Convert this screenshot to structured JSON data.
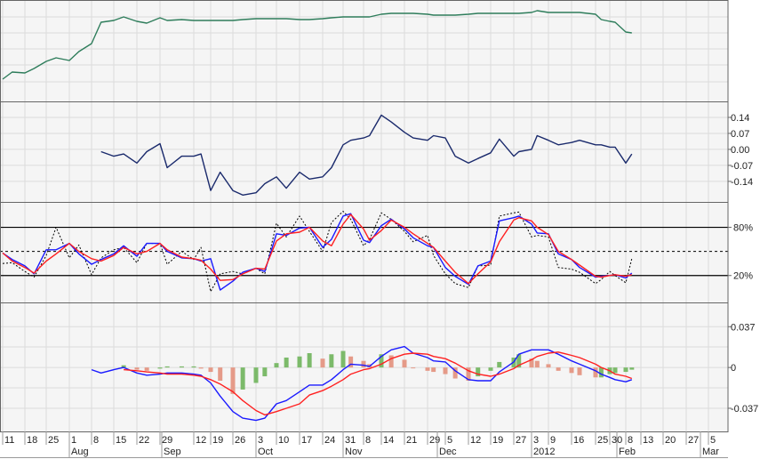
{
  "chart_data": [
    {
      "type": "line",
      "panel": "price",
      "grid": true,
      "ylim": [
        0,
        114
      ],
      "series": [
        {
          "color": "#2e7d5b",
          "values": [
            25,
            33,
            32,
            37,
            45,
            49,
            46,
            56,
            65,
            89,
            91,
            95,
            90,
            88,
            94,
            91,
            92,
            91,
            91,
            91,
            91,
            91,
            92,
            93,
            93,
            93,
            93,
            92,
            92,
            93,
            94,
            95,
            95,
            95,
            95,
            98,
            99,
            99,
            99,
            98,
            97,
            97,
            97,
            98,
            99,
            99,
            99,
            99,
            99,
            100,
            102,
            100,
            100,
            100,
            100,
            98,
            92,
            90,
            89,
            78,
            77
          ]
        }
      ]
    },
    {
      "type": "line",
      "panel": "momentum",
      "grid": true,
      "ylim": [
        -0.23,
        0.21
      ],
      "yticks": [
        0.14,
        0.07,
        0.0,
        -0.07,
        -0.14
      ],
      "ytick_labels": [
        "0.14",
        "0.07",
        "0.00",
        "-0.07",
        "-0.14"
      ],
      "series": [
        {
          "color": "#1a2a6c",
          "values": [
            null,
            null,
            null,
            null,
            null,
            null,
            null,
            null,
            null,
            -0.01,
            -0.03,
            -0.02,
            -0.06,
            -0.01,
            0.025,
            -0.08,
            -0.03,
            -0.03,
            -0.02,
            -0.18,
            -0.1,
            -0.18,
            -0.2,
            -0.19,
            -0.15,
            -0.12,
            -0.17,
            -0.1,
            -0.13,
            -0.12,
            -0.08,
            0.02,
            0.04,
            0.05,
            0.06,
            0.15,
            0.12,
            0.075,
            0.05,
            0.04,
            0.06,
            0.05,
            -0.03,
            -0.06,
            -0.04,
            -0.015,
            0.045,
            -0.03,
            -0.01,
            0.0,
            0.06,
            0.04,
            0.02,
            0.03,
            0.04,
            0.02,
            0.02,
            0.01,
            0.01,
            -0.06,
            -0.02
          ]
        }
      ]
    },
    {
      "type": "line",
      "panel": "stochastic",
      "grid": true,
      "ylim": [
        -13.5,
        111.6
      ],
      "yticks": [
        80,
        20
      ],
      "ytick_labels": [
        "80%",
        "20%"
      ],
      "midline": 50,
      "series": [
        {
          "color": "#000000",
          "style": "dotted",
          "values": [
            35,
            36,
            25,
            18,
            45,
            80,
            42,
            58,
            21,
            42,
            52,
            55,
            36,
            60,
            60,
            34,
            50,
            40,
            55,
            0,
            22,
            25,
            22,
            29,
            22,
            85,
            68,
            94,
            75,
            50,
            86,
            100,
            90,
            57,
            65,
            98,
            90,
            75,
            62,
            70,
            45,
            22,
            10,
            5,
            32,
            33,
            94,
            98,
            99,
            68,
            70,
            68,
            30,
            28,
            24,
            10,
            15,
            25,
            20,
            11,
            41
          ]
        },
        {
          "color": "#1a1aff",
          "values": [
            48,
            40,
            32,
            22,
            52,
            52,
            60,
            47,
            34,
            40,
            47,
            57,
            44,
            60,
            60,
            50,
            42,
            41,
            38,
            41,
            2,
            13,
            24,
            29,
            25,
            72,
            70,
            79,
            80,
            55,
            65,
            94,
            97,
            64,
            61,
            82,
            90,
            78,
            67,
            57,
            55,
            30,
            19,
            9,
            32,
            38,
            88,
            92,
            94,
            84,
            73,
            72,
            47,
            40,
            30,
            18,
            19,
            20,
            21,
            17,
            23
          ]
        },
        {
          "color": "#ff2020",
          "values": [
            48,
            38,
            30,
            23,
            38,
            47,
            60,
            50,
            41,
            38,
            45,
            55,
            47,
            50,
            60,
            52,
            43,
            41,
            39,
            28,
            14,
            15,
            22,
            29,
            28,
            63,
            72,
            74,
            80,
            63,
            57,
            84,
            96,
            78,
            64,
            76,
            89,
            80,
            72,
            60,
            55,
            38,
            24,
            10,
            22,
            37,
            62,
            89,
            92,
            88,
            80,
            71,
            50,
            40,
            33,
            19,
            18,
            20,
            21,
            19,
            21
          ]
        }
      ]
    },
    {
      "type": "line",
      "panel": "macd",
      "grid": true,
      "ylim": [
        -0.058,
        0.059
      ],
      "yticks": [
        0.037,
        0,
        -0.037
      ],
      "ytick_labels": [
        "0.037",
        "0",
        "-0.037"
      ],
      "histogram": {
        "up_color": "#7cba6a",
        "down_color": "#e59a88",
        "values": [
          null,
          null,
          null,
          null,
          null,
          null,
          null,
          null,
          null,
          null,
          null,
          0.002,
          -0.002,
          -0.003,
          -0.001,
          0.001,
          0.001,
          0.001,
          -0.001,
          -0.004,
          -0.012,
          -0.024,
          -0.02,
          -0.014,
          -0.008,
          0.004,
          0.009,
          0.01,
          0.013,
          0.008,
          0.012,
          0.015,
          0.01,
          0.006,
          0.003,
          0.012,
          0.011,
          0.007,
          0.0,
          -0.003,
          -0.004,
          -0.006,
          -0.01,
          -0.012,
          -0.008,
          -0.003,
          0.005,
          0.009,
          0.012,
          0.008,
          0.006,
          0.003,
          -0.003,
          -0.005,
          -0.007,
          -0.009,
          -0.009,
          -0.006,
          -0.005,
          -0.004,
          -0.002
        ]
      },
      "series": [
        {
          "color": "#1a1aff",
          "values": [
            null,
            null,
            null,
            null,
            null,
            null,
            null,
            null,
            -0.002,
            -0.005,
            -0.002,
            0.0,
            -0.005,
            -0.007,
            -0.006,
            -0.005,
            -0.005,
            -0.006,
            -0.007,
            -0.014,
            -0.026,
            -0.04,
            -0.046,
            -0.048,
            -0.046,
            -0.033,
            -0.03,
            -0.022,
            -0.016,
            -0.016,
            -0.011,
            -0.002,
            0.003,
            0.002,
            0.001,
            0.01,
            0.016,
            0.019,
            0.013,
            0.009,
            0.006,
            0.005,
            -0.003,
            -0.011,
            -0.012,
            -0.012,
            -0.004,
            0.005,
            0.012,
            0.016,
            0.016,
            0.016,
            0.012,
            0.006,
            0.003,
            -0.003,
            -0.006,
            -0.009,
            -0.011,
            -0.013,
            -0.011
          ]
        },
        {
          "color": "#ff2020",
          "values": [
            null,
            null,
            null,
            null,
            null,
            null,
            null,
            null,
            null,
            null,
            null,
            -0.002,
            -0.003,
            -0.004,
            -0.005,
            -0.006,
            -0.006,
            -0.007,
            -0.008,
            -0.011,
            -0.015,
            -0.022,
            -0.03,
            -0.039,
            -0.043,
            -0.04,
            -0.037,
            -0.033,
            -0.025,
            -0.021,
            -0.017,
            -0.011,
            -0.006,
            -0.002,
            -0.001,
            0.003,
            0.008,
            0.012,
            0.013,
            0.012,
            0.01,
            0.008,
            0.004,
            -0.003,
            -0.006,
            -0.008,
            -0.006,
            -0.001,
            0.002,
            0.007,
            0.01,
            0.013,
            0.014,
            0.011,
            0.009,
            0.003,
            0.0,
            -0.003,
            -0.006,
            -0.008,
            -0.01
          ]
        }
      ]
    }
  ],
  "dates": [
    "2011-07-11",
    "2011-07-14",
    "2011-07-18",
    "2011-07-21",
    "2011-07-25",
    "2011-07-28",
    "2011-08-01",
    "2011-08-04",
    "2011-08-08",
    "2011-08-11",
    "2011-08-15",
    "2011-08-18",
    "2011-08-22",
    "2011-08-25",
    "2011-08-29",
    "2011-09-01",
    "2011-09-07",
    "2011-09-12",
    "2011-09-15",
    "2011-09-19",
    "2011-09-22",
    "2011-09-26",
    "2011-09-29",
    "2011-10-03",
    "2011-10-06",
    "2011-10-10",
    "2011-10-13",
    "2011-10-17",
    "2011-10-20",
    "2011-10-24",
    "2011-10-27",
    "2011-10-31",
    "2011-11-03",
    "2011-11-08",
    "2011-11-10",
    "2011-11-14",
    "2011-11-17",
    "2011-11-21",
    "2011-11-24",
    "2011-11-29",
    "2011-12-01",
    "2011-12-05",
    "2011-12-08",
    "2011-12-12",
    "2011-12-15",
    "2011-12-19",
    "2011-12-22",
    "2011-12-27",
    "2011-12-29",
    "2012-01-03",
    "2012-01-05",
    "2012-01-09",
    "2012-01-12",
    "2012-01-16",
    "2012-01-19",
    "2012-01-25",
    "2012-01-27",
    "2012-01-30",
    "2012-02-02",
    "2012-02-08",
    "2012-02-10"
  ],
  "x_axis": {
    "ticks": [
      {
        "label": "11",
        "date": "2011-07-11"
      },
      {
        "label": "18",
        "date": "2011-07-18"
      },
      {
        "label": "25",
        "date": "2011-07-25"
      },
      {
        "label": "1",
        "date": "2011-08-01"
      },
      {
        "label": "8",
        "date": "2011-08-08"
      },
      {
        "label": "15",
        "date": "2011-08-15"
      },
      {
        "label": "22",
        "date": "2011-08-22"
      },
      {
        "label": "29",
        "date": "2011-08-29"
      },
      {
        "label": "12",
        "date": "2011-09-12"
      },
      {
        "label": "19",
        "date": "2011-09-19"
      },
      {
        "label": "26",
        "date": "2011-09-26"
      },
      {
        "label": "3",
        "date": "2011-10-03"
      },
      {
        "label": "10",
        "date": "2011-10-10"
      },
      {
        "label": "17",
        "date": "2011-10-17"
      },
      {
        "label": "24",
        "date": "2011-10-24"
      },
      {
        "label": "31",
        "date": "2011-10-31"
      },
      {
        "label": "8",
        "date": "2011-11-08"
      },
      {
        "label": "14",
        "date": "2011-11-14"
      },
      {
        "label": "21",
        "date": "2011-11-21"
      },
      {
        "label": "29",
        "date": "2011-11-29"
      },
      {
        "label": "5",
        "date": "2011-12-05"
      },
      {
        "label": "12",
        "date": "2011-12-12"
      },
      {
        "label": "19",
        "date": "2011-12-19"
      },
      {
        "label": "27",
        "date": "2011-12-27"
      },
      {
        "label": "3",
        "date": "2012-01-03"
      },
      {
        "label": "9",
        "date": "2012-01-09"
      },
      {
        "label": "16",
        "date": "2012-01-16"
      },
      {
        "label": "25",
        "date": "2012-01-25"
      },
      {
        "label": "30",
        "date": "2012-01-30"
      },
      {
        "label": "8",
        "date": "2012-02-08"
      },
      {
        "label": "13",
        "date": "2012-02-13"
      },
      {
        "label": "20",
        "date": "2012-02-20"
      },
      {
        "label": "27",
        "date": "2012-02-27"
      },
      {
        "label": "5",
        "date": "2012-03-05"
      }
    ],
    "months": [
      "Aug",
      "Sep",
      "Oct",
      "Nov",
      "Dec",
      "2012",
      "Feb",
      "Mar"
    ]
  }
}
